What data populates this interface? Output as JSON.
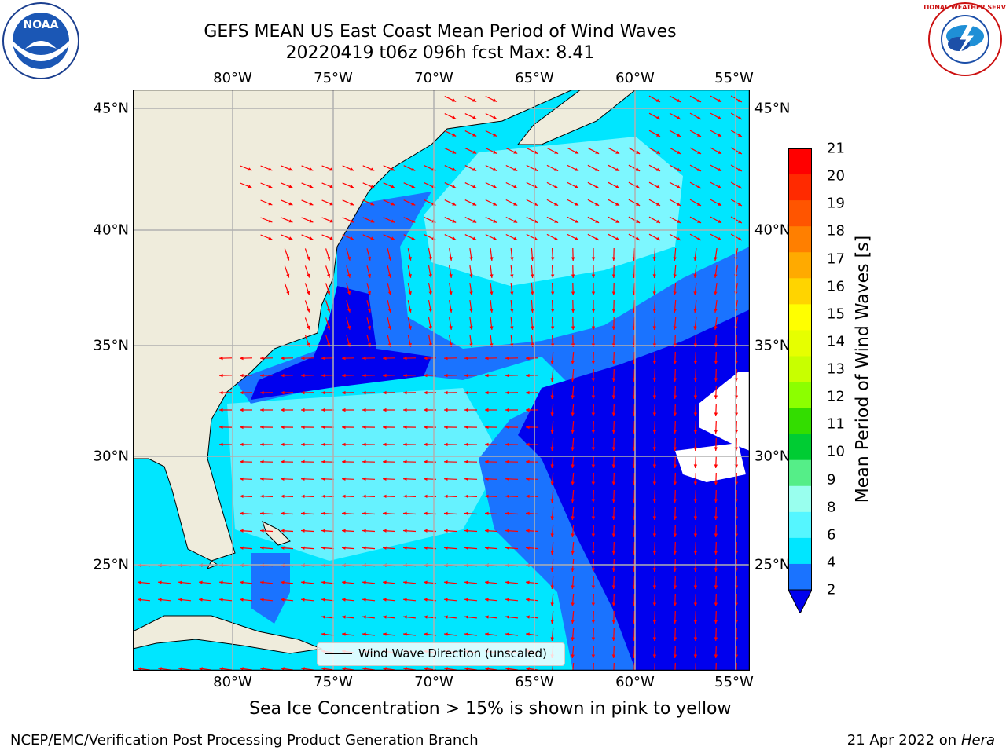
{
  "title": {
    "line1": "GEFS MEAN US East Coast Mean Period of Wind Waves",
    "line2": "20220419 t06z 096h fcst   Max: 8.41"
  },
  "logos": {
    "left": "noaa-logo",
    "left_text": "NOAA",
    "right": "nws-logo",
    "right_text": "NATIONAL WEATHER SERVICE"
  },
  "map": {
    "lon_labels": [
      "80°W",
      "75°W",
      "70°W",
      "65°W",
      "60°W",
      "55°W"
    ],
    "lat_labels": [
      "45°N",
      "40°N",
      "35°N",
      "30°N",
      "25°N"
    ],
    "legend_label": "Wind Wave Direction (unscaled)",
    "colors": {
      "land": "#efecdc",
      "ocean_low": "#0000ee",
      "ocean_2_4": "#1a73ff",
      "ocean_4_6": "#00e6ff",
      "ocean_6_8": "#55f0ff",
      "arrow": "#ff0000",
      "grid": "#b0b0b0"
    }
  },
  "colorbar": {
    "label": "Mean Period of Wind Waves [s]",
    "ticks": [
      "21",
      "20",
      "19",
      "18",
      "17",
      "16",
      "15",
      "14",
      "13",
      "12",
      "11",
      "10",
      "9",
      "8",
      "6",
      "4",
      "2"
    ],
    "colors": [
      "#ff0000",
      "#ff2a00",
      "#ff5500",
      "#ff7f00",
      "#ffaa00",
      "#ffd400",
      "#ffff00",
      "#e6ff00",
      "#c8ff00",
      "#8cff00",
      "#33dd00",
      "#00cc33",
      "#55ee88",
      "#99ffee",
      "#55f6ff",
      "#00e6ff",
      "#1a73ff"
    ]
  },
  "notes": {
    "sea_ice": "Sea Ice Concentration > 15% is shown in pink to yellow",
    "footer_left": "NCEP/EMC/Verification Post Processing Product Generation Branch",
    "footer_date": "21 Apr 2022 on ",
    "footer_host": "Hera"
  }
}
